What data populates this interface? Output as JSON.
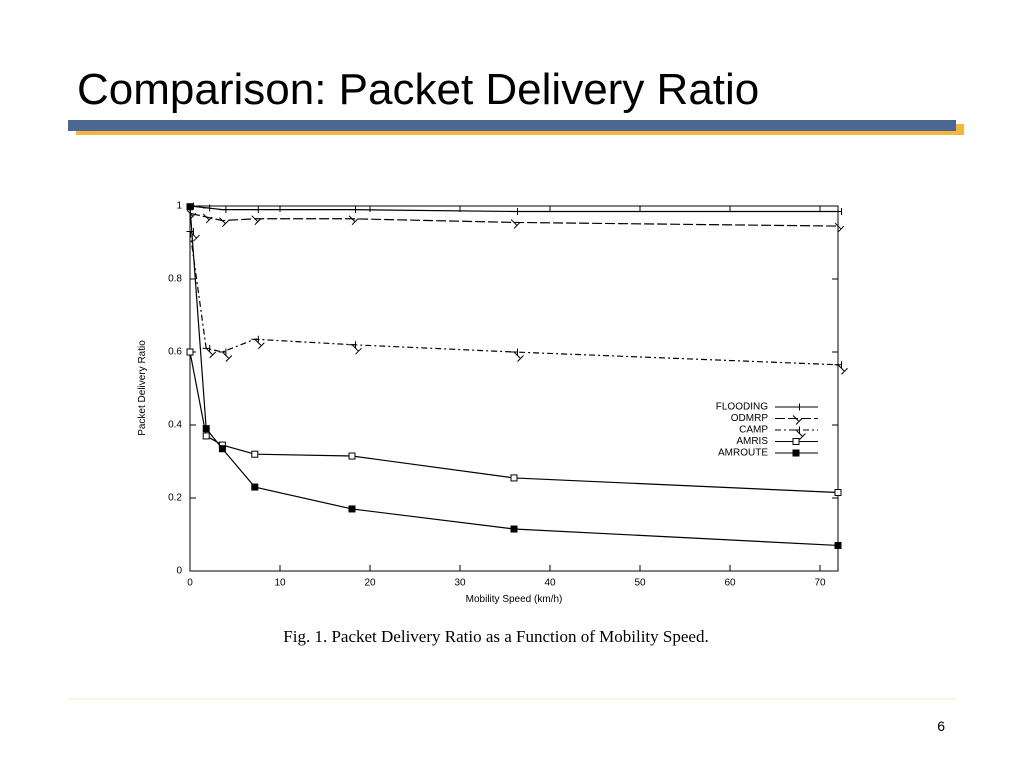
{
  "slide_title": "Comparison: Packet Delivery Ratio",
  "caption": "Fig. 1.  Packet Delivery Ratio as a Function of Mobility Speed.",
  "page_number": "6",
  "chart_data": {
    "type": "line",
    "xlabel": "Mobility Speed (km/h)",
    "ylabel": "Packet Delivery Ratio",
    "x": [
      0,
      1.8,
      3.6,
      7.2,
      18,
      36,
      72
    ],
    "xlim": [
      0,
      72
    ],
    "xticks": [
      0,
      10,
      20,
      30,
      40,
      50,
      60,
      70
    ],
    "ylim": [
      0,
      1
    ],
    "yticks": [
      0,
      0.2,
      0.4,
      0.6,
      0.8,
      1
    ],
    "legend": "right",
    "series": [
      {
        "name": "FLOODING",
        "color": "#000000",
        "marker": "plus",
        "line_style": "solid",
        "values": [
          1.0,
          0.995,
          0.99,
          0.99,
          0.99,
          0.985,
          0.985
        ]
      },
      {
        "name": "ODMRP",
        "color": "#000000",
        "marker": "x",
        "line_style": "dashed",
        "values": [
          0.98,
          0.97,
          0.96,
          0.965,
          0.965,
          0.955,
          0.945
        ]
      },
      {
        "name": "CAMP",
        "color": "#000000",
        "marker": "star",
        "line_style": "dashdot",
        "values": [
          0.93,
          0.61,
          0.6,
          0.635,
          0.62,
          0.6,
          0.565
        ]
      },
      {
        "name": "AMRIS",
        "color": "#000000",
        "marker": "square-open",
        "line_style": "solid",
        "values": [
          0.6,
          0.37,
          0.345,
          0.32,
          0.315,
          0.255,
          0.215
        ]
      },
      {
        "name": "AMROUTE",
        "color": "#000000",
        "marker": "square-filled",
        "line_style": "solid",
        "values": [
          0.998,
          0.39,
          0.335,
          0.23,
          0.17,
          0.115,
          0.07
        ]
      }
    ]
  }
}
